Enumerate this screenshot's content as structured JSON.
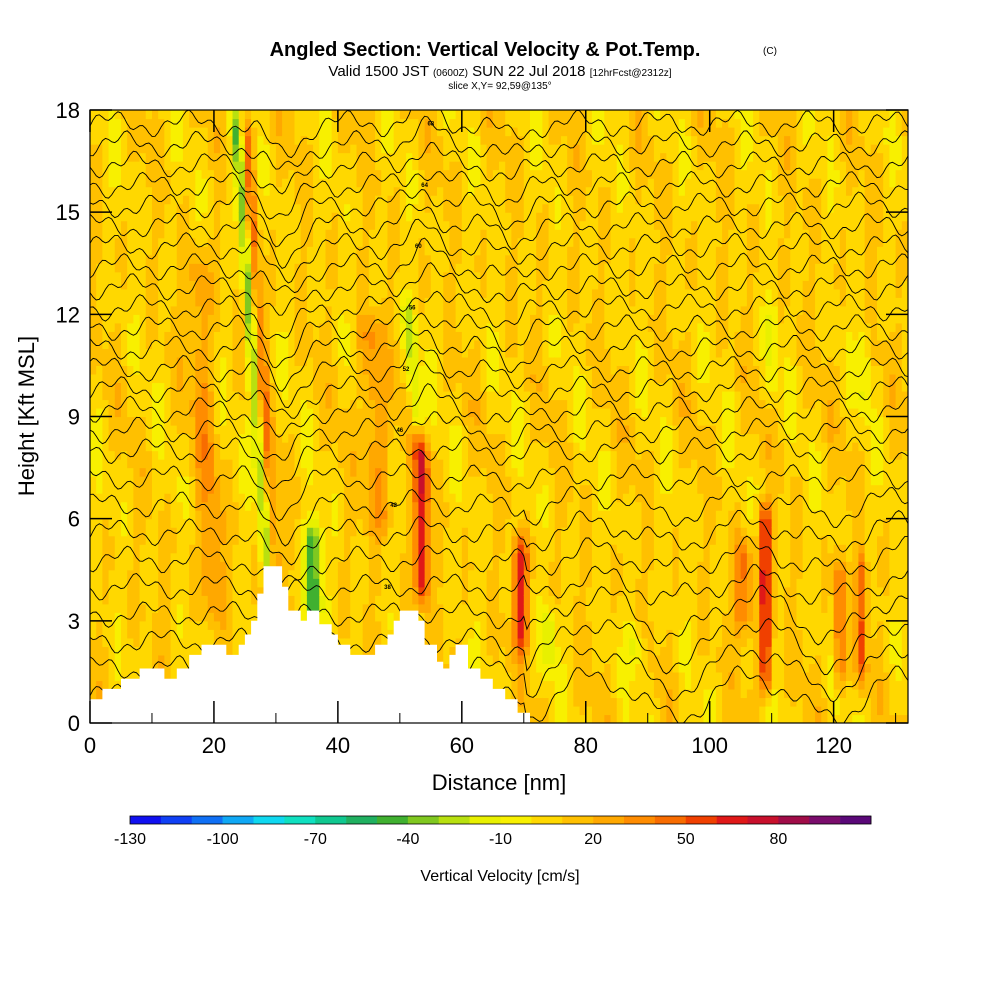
{
  "titles": {
    "title_bold": "Angled Section: Vertical Velocity & Pot.Temp.",
    "title_copyright": "(C)",
    "valid_prefix": "Valid 1500 JST",
    "valid_z": "(0600Z)",
    "valid_date": "SUN 22 Jul 2018",
    "valid_fcst": "[12hrFcst@2312z]",
    "slice": "slice X,Y= 92,59@135°"
  },
  "chart_data": {
    "type": "heatmap",
    "xlabel": "Distance [nm]",
    "ylabel": "Height [Kft MSL]",
    "xlim": [
      0,
      132
    ],
    "ylim": [
      0,
      18
    ],
    "x_ticks": [
      0,
      20,
      40,
      60,
      80,
      100,
      120
    ],
    "y_ticks": [
      0,
      3,
      6,
      9,
      12,
      15,
      18
    ],
    "colorbar": {
      "title": "Vertical Velocity [cm/s]",
      "min": -130,
      "max": 100,
      "step": 10,
      "tick_values": [
        -130,
        -100,
        -70,
        -40,
        -10,
        20,
        50,
        80
      ],
      "tick_labels": [
        "-130",
        "-100",
        "-70",
        "-40",
        "-10",
        "20",
        "50",
        "80"
      ],
      "colors": [
        "#1010f0",
        "#1040f5",
        "#1070f5",
        "#10a8f5",
        "#10d8f0",
        "#10e0c0",
        "#10c890",
        "#20b060",
        "#40b030",
        "#80c820",
        "#b8e010",
        "#e8f000",
        "#f8f000",
        "#ffd800",
        "#ffc000",
        "#ffa800",
        "#ff8c00",
        "#f86c00",
        "#f04000",
        "#e01818",
        "#c8102c",
        "#a00c48",
        "#7a0c6c",
        "#5a0878"
      ]
    },
    "terrain_kft": [
      [
        0,
        0.7
      ],
      [
        2,
        0.7
      ],
      [
        2,
        1.0
      ],
      [
        5,
        1.0
      ],
      [
        5,
        1.3
      ],
      [
        8,
        1.3
      ],
      [
        8,
        1.6
      ],
      [
        12,
        1.6
      ],
      [
        12,
        1.3
      ],
      [
        14,
        1.3
      ],
      [
        14,
        1.6
      ],
      [
        16,
        1.6
      ],
      [
        16,
        2.0
      ],
      [
        18,
        2.0
      ],
      [
        18,
        2.3
      ],
      [
        22,
        2.3
      ],
      [
        22,
        2.0
      ],
      [
        24,
        2.0
      ],
      [
        24,
        2.3
      ],
      [
        25,
        2.3
      ],
      [
        25,
        2.6
      ],
      [
        26,
        2.6
      ],
      [
        26,
        3.0
      ],
      [
        27,
        3.0
      ],
      [
        27,
        3.8
      ],
      [
        28,
        3.8
      ],
      [
        28,
        4.6
      ],
      [
        31,
        4.6
      ],
      [
        31,
        4.0
      ],
      [
        32,
        4.0
      ],
      [
        32,
        3.3
      ],
      [
        34,
        3.3
      ],
      [
        34,
        3.0
      ],
      [
        35,
        3.0
      ],
      [
        35,
        3.3
      ],
      [
        37,
        3.3
      ],
      [
        37,
        2.9
      ],
      [
        39,
        2.9
      ],
      [
        39,
        2.6
      ],
      [
        40,
        2.6
      ],
      [
        40,
        2.3
      ],
      [
        42,
        2.3
      ],
      [
        42,
        2.0
      ],
      [
        46,
        2.0
      ],
      [
        46,
        2.3
      ],
      [
        48,
        2.3
      ],
      [
        48,
        2.6
      ],
      [
        49,
        2.6
      ],
      [
        49,
        3.0
      ],
      [
        50,
        3.0
      ],
      [
        50,
        3.3
      ],
      [
        53,
        3.3
      ],
      [
        53,
        3.0
      ],
      [
        54,
        3.0
      ],
      [
        54,
        2.3
      ],
      [
        56,
        2.3
      ],
      [
        56,
        1.8
      ],
      [
        57,
        1.8
      ],
      [
        57,
        1.6
      ],
      [
        58,
        1.6
      ],
      [
        58,
        2.0
      ],
      [
        59,
        2.0
      ],
      [
        59,
        2.3
      ],
      [
        61,
        2.3
      ],
      [
        61,
        1.6
      ],
      [
        63,
        1.6
      ],
      [
        63,
        1.3
      ],
      [
        65,
        1.3
      ],
      [
        65,
        1.0
      ],
      [
        67,
        1.0
      ],
      [
        67,
        0.7
      ],
      [
        69,
        0.7
      ],
      [
        69,
        0.3
      ],
      [
        71,
        0.3
      ],
      [
        71,
        0
      ],
      [
        132,
        0
      ]
    ],
    "velocity_features": [
      {
        "x": 30.5,
        "z_bot": 1.0,
        "z_top": 18.0,
        "lean": -0.35,
        "width": 1.2,
        "value": 60
      },
      {
        "x": 29.0,
        "z_bot": 4.0,
        "z_top": 18.0,
        "lean": -0.38,
        "width": 1.0,
        "value": -80
      },
      {
        "x": 36.0,
        "z_bot": 2.8,
        "z_top": 6.0,
        "lean": 0.0,
        "width": 1.3,
        "value": -60
      },
      {
        "x": 53.5,
        "z_bot": 3.5,
        "z_top": 8.5,
        "lean": 0.0,
        "width": 1.2,
        "value": 60
      },
      {
        "x": 53.0,
        "z_bot": 8.5,
        "z_top": 12.5,
        "lean": -0.45,
        "width": 1.0,
        "value": -30
      },
      {
        "x": 69.5,
        "z_bot": 2.0,
        "z_top": 5.5,
        "lean": 0.0,
        "width": 1.2,
        "value": 55
      },
      {
        "x": 109.0,
        "z_bot": 0.8,
        "z_top": 6.5,
        "lean": 0.0,
        "width": 1.0,
        "value": 60
      },
      {
        "x": 105.5,
        "z_bot": 2.5,
        "z_top": 5.5,
        "lean": 0.0,
        "width": 1.5,
        "value": 35
      },
      {
        "x": 121.0,
        "z_bot": 1.0,
        "z_top": 5.0,
        "lean": 0.0,
        "width": 0.8,
        "value": 45
      },
      {
        "x": 124.5,
        "z_bot": 1.0,
        "z_top": 5.0,
        "lean": 0.0,
        "width": 0.8,
        "value": 40
      },
      {
        "x": 110.0,
        "z_bot": 9.5,
        "z_top": 12.5,
        "lean": 0.0,
        "width": 0.8,
        "value": -20
      },
      {
        "x": 125.0,
        "z_bot": 9.0,
        "z_top": 12.0,
        "lean": 0.0,
        "width": 0.8,
        "value": -20
      },
      {
        "x": 88.0,
        "z_bot": 1.5,
        "z_top": 3.0,
        "lean": 0.0,
        "width": 1.5,
        "value": -20
      },
      {
        "x": 74.0,
        "z_bot": 1.5,
        "z_top": 3.5,
        "lean": 0.0,
        "width": 1.2,
        "value": -25
      },
      {
        "x": 47.0,
        "z_bot": 5.5,
        "z_top": 12.0,
        "lean": -0.3,
        "width": 2.0,
        "value": 25
      },
      {
        "x": 20.0,
        "z_bot": 3.0,
        "z_top": 14.0,
        "lean": -0.25,
        "width": 2.0,
        "value": 20
      }
    ],
    "theta_contours": {
      "z_levels_kft": [
        0.8,
        1.6,
        2.4,
        3.2,
        4.0,
        4.8,
        5.6,
        6.4,
        7.2,
        8.0,
        8.6,
        9.2,
        9.8,
        10.4,
        11.0,
        11.6,
        12.2,
        12.8,
        13.4,
        14.0,
        14.6,
        15.2,
        15.8,
        16.4,
        17.0,
        17.6
      ]
    },
    "contour_labels": [
      "34",
      "36",
      "38",
      "40",
      "42",
      "44",
      "46",
      "48",
      "50",
      "52",
      "54",
      "56",
      "58",
      "60",
      "62",
      "64",
      "66",
      "68"
    ]
  }
}
